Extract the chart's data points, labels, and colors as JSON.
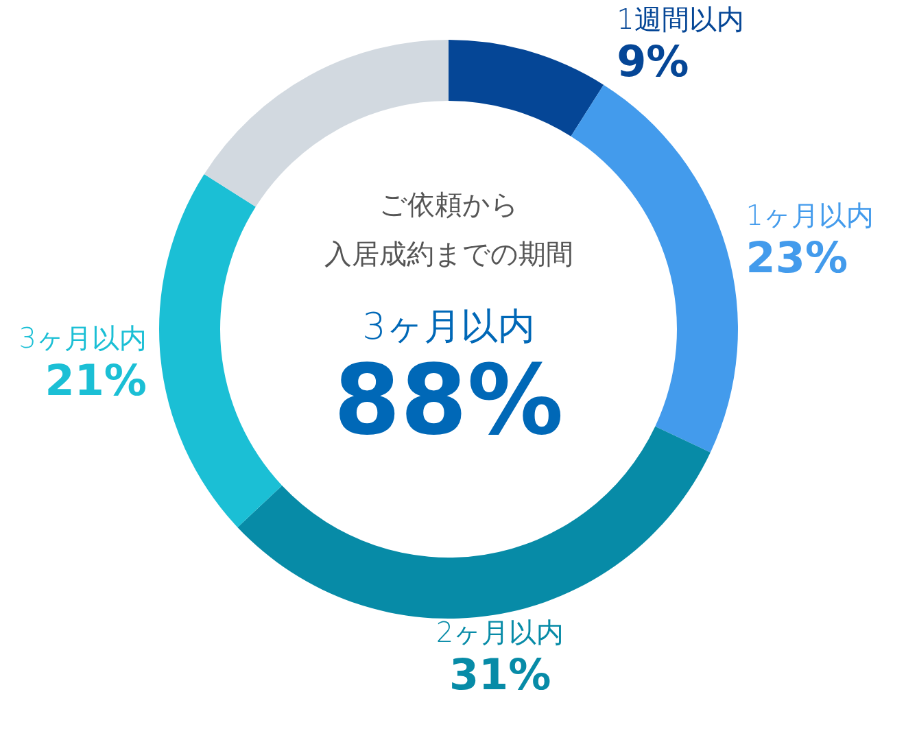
{
  "chart_data": {
    "type": "donut",
    "title": "ご依頼から",
    "subtitle": "入居成約までの期間",
    "categories": [
      "1週間以内",
      "1ヶ月以内",
      "2ヶ月以内",
      "3ヶ月以内",
      null
    ],
    "values": [
      9,
      23,
      31,
      21,
      16
    ],
    "value_labels": [
      "9%",
      "23%",
      "31%",
      "21%",
      null
    ],
    "colors": [
      "#054696",
      "#439bec",
      "#078ba7",
      "#1bbfd5",
      "#d2d9e0"
    ],
    "annotations": [
      "3ヶ月以内",
      "88%"
    ]
  }
}
